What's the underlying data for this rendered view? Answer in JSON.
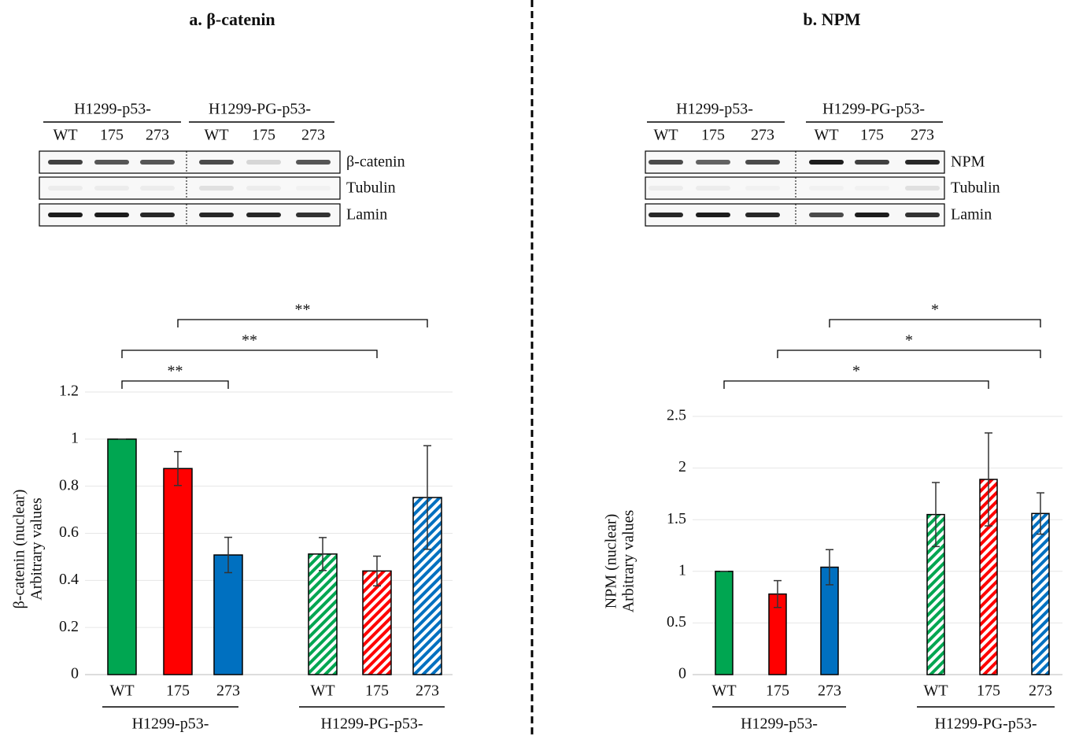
{
  "chart_data": [
    {
      "type": "bar",
      "title": "a. β-catenin",
      "ylabel": [
        "β-catenin (nuclear)",
        "Arbitrary values"
      ],
      "categories": [
        "WT",
        "175",
        "273",
        "WT",
        "175",
        "273"
      ],
      "groups": [
        "H1299-p53-",
        "H1299-PG-p53-"
      ],
      "values": [
        1,
        0.875,
        0.508,
        0.512,
        0.44,
        0.752
      ],
      "errors": [
        0,
        0.072,
        0.075,
        0.07,
        0.063,
        0.22
      ],
      "colors": [
        "#00a651",
        "#ff0000",
        "#0070c0",
        "#00a651",
        "#ff0000",
        "#0070c0"
      ],
      "hatched": [
        false,
        false,
        false,
        true,
        true,
        true
      ],
      "ylim": [
        0,
        1.2
      ],
      "yticks": [
        0,
        0.2,
        0.4,
        0.6,
        0.8,
        1,
        1.2
      ],
      "grid": true,
      "annotations": [
        "**",
        "**",
        "**"
      ]
    },
    {
      "type": "bar",
      "title": "b. NPM",
      "ylabel": [
        "NPM (nuclear)",
        "Arbitrary values"
      ],
      "categories": [
        "WT",
        "175",
        "273",
        "WT",
        "175",
        "273"
      ],
      "groups": [
        "H1299-p53-",
        "H1299-PG-p53-"
      ],
      "values": [
        1,
        0.78,
        1.04,
        1.55,
        1.89,
        1.56
      ],
      "errors": [
        0,
        0.13,
        0.17,
        0.31,
        0.45,
        0.2
      ],
      "colors": [
        "#00a651",
        "#ff0000",
        "#0070c0",
        "#00a651",
        "#ff0000",
        "#0070c0"
      ],
      "hatched": [
        false,
        false,
        false,
        true,
        true,
        true
      ],
      "ylim": [
        0,
        2.5
      ],
      "yticks": [
        0,
        0.5,
        1,
        1.5,
        2,
        2.5
      ],
      "grid": true,
      "annotations": [
        "*",
        "*",
        "*"
      ]
    }
  ],
  "blots": [
    {
      "groups": [
        "H1299-p53-",
        "H1299-PG-p53-"
      ],
      "lanes": [
        "WT",
        "175",
        "273",
        "WT",
        "175",
        "273"
      ],
      "rows": [
        "β-catenin",
        "Tubulin",
        "Lamin"
      ]
    },
    {
      "groups": [
        "H1299-p53-",
        "H1299-PG-p53-"
      ],
      "lanes": [
        "WT",
        "175",
        "273",
        "WT",
        "175",
        "273"
      ],
      "rows": [
        "NPM",
        "Tubulin",
        "Lamin"
      ]
    }
  ]
}
